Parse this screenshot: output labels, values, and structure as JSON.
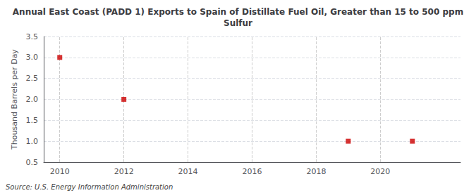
{
  "chart_data": {
    "type": "scatter",
    "title": "Annual East Coast (PADD 1) Exports to Spain of Distillate Fuel Oil, Greater than 15 to 500 ppm\nSulfur",
    "ylabel": "Thousand Barrels per Day",
    "annotations": [
      "Source: U.S. Energy Information Administration"
    ],
    "x": [
      2010,
      2012,
      2019,
      2021
    ],
    "values": [
      3.0,
      2.0,
      1.0,
      1.0
    ],
    "color": "#cc0000",
    "marker": "square",
    "xlim": [
      2009.5,
      2022.5
    ],
    "xticks": [
      2010,
      2012,
      2014,
      2016,
      2018,
      2020
    ],
    "ylim": [
      0.5,
      3.5
    ],
    "yticks": [
      0.5,
      {
        "value": 1.0,
        "label": "1.0"
      },
      1.5,
      {
        "value": 2.0,
        "label": "2.0"
      },
      2.5,
      {
        "value": 3.0,
        "label": "3.0"
      },
      3.5
    ],
    "grid": true
  }
}
